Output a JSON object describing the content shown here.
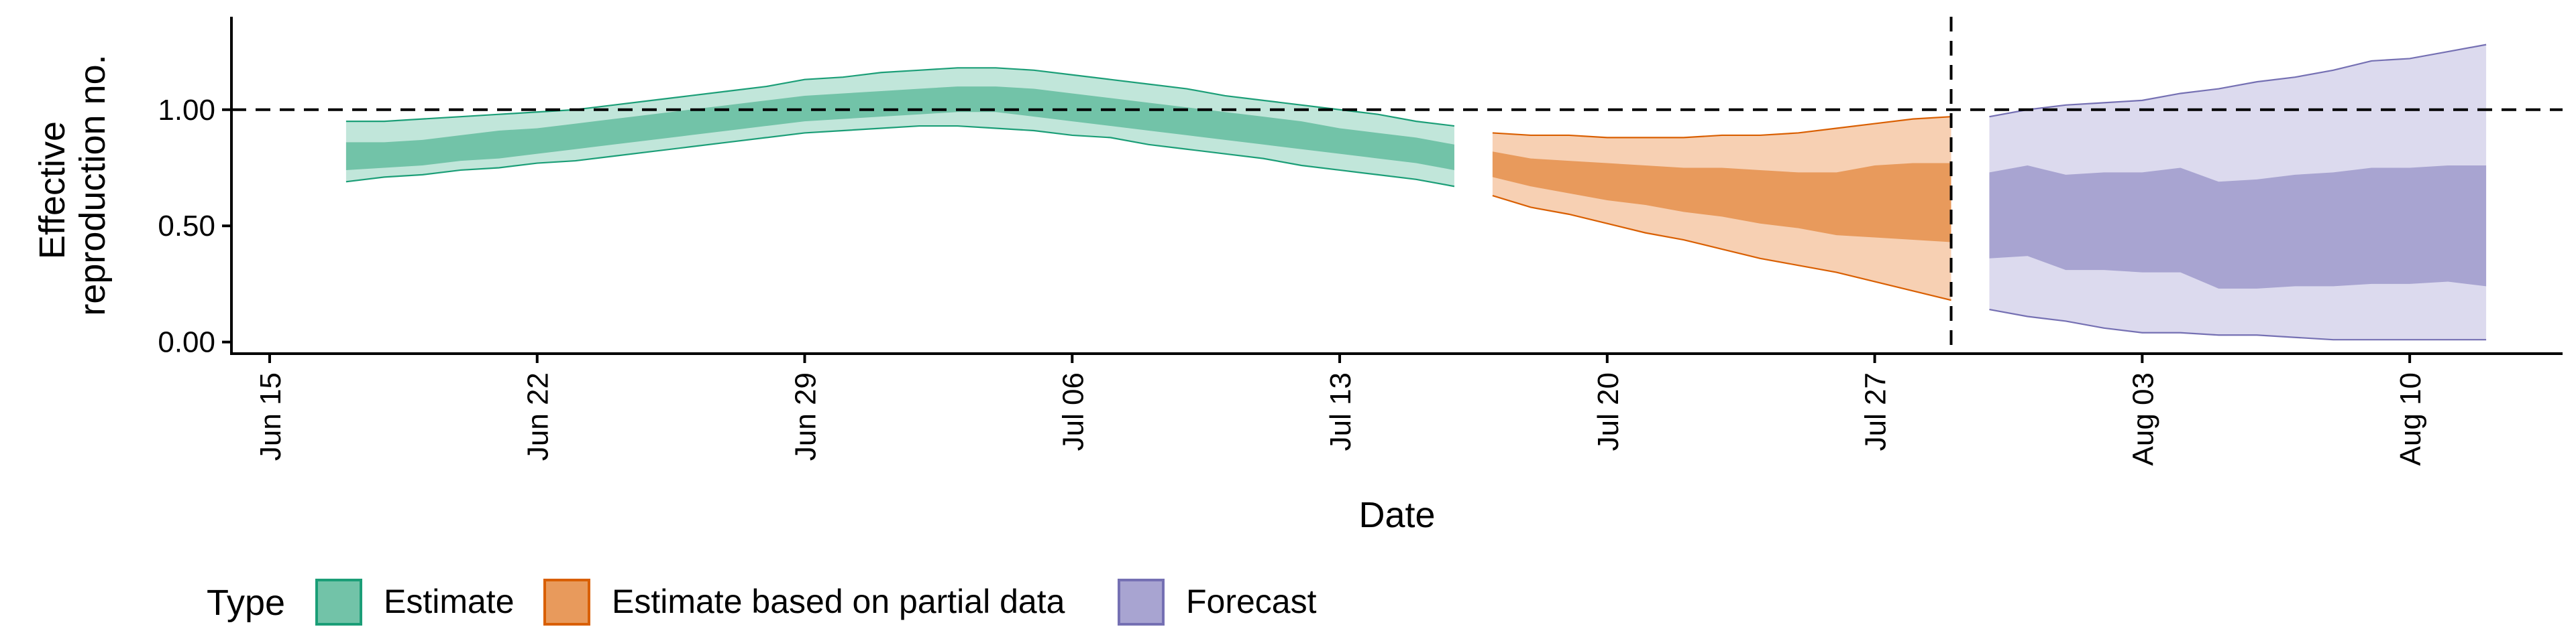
{
  "chart_data": {
    "type": "area",
    "title": "",
    "xlabel": "Date",
    "ylabel_lines": [
      "Effective",
      "reproduction no."
    ],
    "x_ticks": [
      "2020-06-15",
      "2020-06-22",
      "2020-06-29",
      "2020-07-06",
      "2020-07-13",
      "2020-07-20",
      "2020-07-27",
      "2020-08-03",
      "2020-08-10"
    ],
    "x_tick_labels": [
      "Jun 15",
      "Jun 22",
      "Jun 29",
      "Jul 06",
      "Jul 13",
      "Jul 20",
      "Jul 27",
      "Aug 03",
      "Aug 10"
    ],
    "xlim": [
      "2020-06-14",
      "2020-08-14"
    ],
    "ylim": [
      -0.05,
      1.4
    ],
    "y_ticks": [
      0,
      0.5,
      1.0
    ],
    "y_tick_labels": [
      "0.00",
      "0.50",
      "1.00"
    ],
    "reference_lines": {
      "horizontal_y": 1.0,
      "vertical_x": "2020-07-29"
    },
    "legend": {
      "title": "Type",
      "position": "bottom"
    },
    "series": [
      {
        "name": "Estimate",
        "color": "#1b9e77",
        "outer_fill": "#c1e6da",
        "inner_fill": "#72c3a8",
        "x": [
          "2020-06-17",
          "2020-06-18",
          "2020-06-19",
          "2020-06-20",
          "2020-06-21",
          "2020-06-22",
          "2020-06-23",
          "2020-06-24",
          "2020-06-25",
          "2020-06-26",
          "2020-06-27",
          "2020-06-28",
          "2020-06-29",
          "2020-06-30",
          "2020-07-01",
          "2020-07-02",
          "2020-07-03",
          "2020-07-04",
          "2020-07-05",
          "2020-07-06",
          "2020-07-07",
          "2020-07-08",
          "2020-07-09",
          "2020-07-10",
          "2020-07-11",
          "2020-07-12",
          "2020-07-13",
          "2020-07-14",
          "2020-07-15",
          "2020-07-16"
        ],
        "upper90": [
          0.95,
          0.95,
          0.96,
          0.97,
          0.98,
          0.99,
          1.0,
          1.02,
          1.04,
          1.06,
          1.08,
          1.1,
          1.13,
          1.14,
          1.16,
          1.17,
          1.18,
          1.18,
          1.17,
          1.15,
          1.13,
          1.11,
          1.09,
          1.06,
          1.04,
          1.02,
          1.0,
          0.98,
          0.95,
          0.93
        ],
        "upper50": [
          0.86,
          0.86,
          0.87,
          0.89,
          0.91,
          0.92,
          0.94,
          0.96,
          0.98,
          1.0,
          1.02,
          1.04,
          1.06,
          1.07,
          1.08,
          1.09,
          1.1,
          1.1,
          1.09,
          1.07,
          1.05,
          1.03,
          1.01,
          0.99,
          0.97,
          0.95,
          0.92,
          0.9,
          0.88,
          0.85
        ],
        "lower50": [
          0.74,
          0.75,
          0.76,
          0.78,
          0.79,
          0.81,
          0.83,
          0.85,
          0.87,
          0.89,
          0.91,
          0.93,
          0.95,
          0.96,
          0.97,
          0.98,
          0.99,
          0.99,
          0.97,
          0.95,
          0.93,
          0.91,
          0.89,
          0.87,
          0.85,
          0.83,
          0.81,
          0.79,
          0.77,
          0.74
        ],
        "lower90": [
          0.69,
          0.71,
          0.72,
          0.74,
          0.75,
          0.77,
          0.78,
          0.8,
          0.82,
          0.84,
          0.86,
          0.88,
          0.9,
          0.91,
          0.92,
          0.93,
          0.93,
          0.92,
          0.91,
          0.89,
          0.88,
          0.85,
          0.83,
          0.81,
          0.79,
          0.76,
          0.74,
          0.72,
          0.7,
          0.67
        ]
      },
      {
        "name": "Estimate based on partial data",
        "color": "#d95f02",
        "outer_fill": "#f7d0b3",
        "inner_fill": "#e89a5c",
        "x": [
          "2020-07-17",
          "2020-07-18",
          "2020-07-19",
          "2020-07-20",
          "2020-07-21",
          "2020-07-22",
          "2020-07-23",
          "2020-07-24",
          "2020-07-25",
          "2020-07-26",
          "2020-07-27",
          "2020-07-28",
          "2020-07-29"
        ],
        "upper90": [
          0.9,
          0.89,
          0.89,
          0.88,
          0.88,
          0.88,
          0.89,
          0.89,
          0.9,
          0.92,
          0.94,
          0.96,
          0.97
        ],
        "upper50": [
          0.82,
          0.79,
          0.78,
          0.77,
          0.76,
          0.75,
          0.75,
          0.74,
          0.73,
          0.73,
          0.76,
          0.77,
          0.77
        ],
        "lower50": [
          0.71,
          0.67,
          0.64,
          0.61,
          0.59,
          0.56,
          0.54,
          0.51,
          0.49,
          0.46,
          0.45,
          0.44,
          0.43
        ],
        "lower90": [
          0.63,
          0.58,
          0.55,
          0.51,
          0.47,
          0.44,
          0.4,
          0.36,
          0.33,
          0.3,
          0.26,
          0.22,
          0.18
        ]
      },
      {
        "name": "Forecast",
        "color": "#7570b3",
        "outer_fill": "#dcdaee",
        "inner_fill": "#a8a4d1",
        "x": [
          "2020-07-30",
          "2020-07-31",
          "2020-08-01",
          "2020-08-02",
          "2020-08-03",
          "2020-08-04",
          "2020-08-05",
          "2020-08-06",
          "2020-08-07",
          "2020-08-08",
          "2020-08-09",
          "2020-08-10",
          "2020-08-11",
          "2020-08-12"
        ],
        "upper90": [
          0.97,
          1.0,
          1.02,
          1.03,
          1.04,
          1.07,
          1.09,
          1.12,
          1.14,
          1.17,
          1.21,
          1.22,
          1.25,
          1.28
        ],
        "upper50": [
          0.73,
          0.76,
          0.72,
          0.73,
          0.73,
          0.75,
          0.69,
          0.7,
          0.72,
          0.73,
          0.75,
          0.75,
          0.76,
          0.76
        ],
        "lower50": [
          0.36,
          0.37,
          0.31,
          0.31,
          0.3,
          0.3,
          0.23,
          0.23,
          0.24,
          0.24,
          0.25,
          0.25,
          0.26,
          0.24
        ],
        "lower90": [
          0.14,
          0.11,
          0.09,
          0.06,
          0.04,
          0.04,
          0.03,
          0.03,
          0.02,
          0.01,
          0.01,
          0.01,
          0.01,
          0.01
        ]
      }
    ]
  }
}
